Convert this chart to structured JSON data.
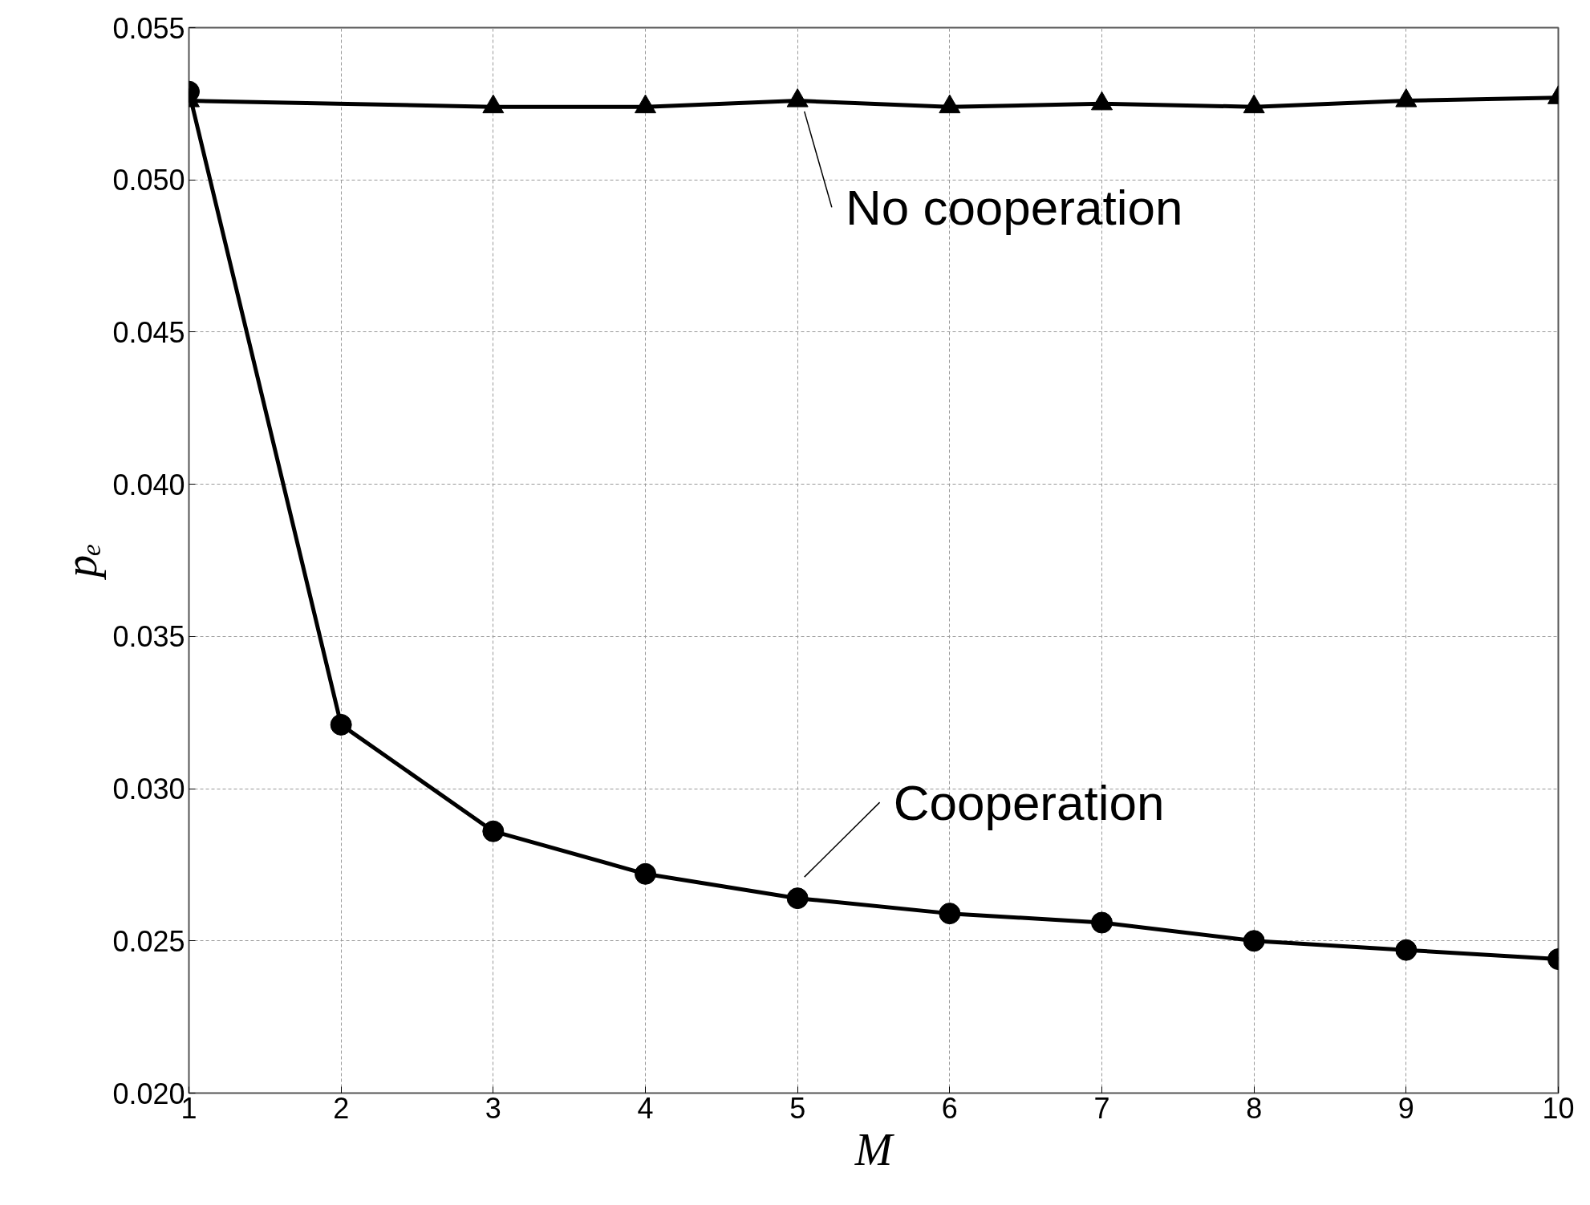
{
  "chart_data": {
    "type": "line",
    "xlabel": "M",
    "ylabel": "pₑ",
    "x": [
      1,
      2,
      3,
      4,
      5,
      6,
      7,
      8,
      9,
      10
    ],
    "series": [
      {
        "name": "No cooperation",
        "color": "#000000",
        "marker": "triangle",
        "x": [
          1,
          3,
          4,
          5,
          6,
          7,
          8,
          9,
          10
        ],
        "values": [
          0.0526,
          0.0524,
          0.0524,
          0.0526,
          0.0524,
          0.0525,
          0.0524,
          0.0526,
          0.0527
        ]
      },
      {
        "name": "Cooperation",
        "color": "#000000",
        "marker": "circle",
        "values": [
          0.0529,
          0.0321,
          0.0286,
          0.0272,
          0.0264,
          0.0259,
          0.0256,
          0.025,
          0.0247,
          0.0244
        ]
      }
    ],
    "xlim": [
      1,
      10
    ],
    "xticks": [
      1,
      2,
      3,
      4,
      5,
      6,
      7,
      8,
      9,
      10
    ],
    "ylim": [
      0.02,
      0.055
    ],
    "yticks": [
      {
        "value": 0.02,
        "label": "0.020"
      },
      {
        "value": 0.025,
        "label": "0.025"
      },
      {
        "value": 0.03,
        "label": "0.030"
      },
      {
        "value": 0.035,
        "label": "0.035"
      },
      {
        "value": 0.04,
        "label": "0.040"
      },
      {
        "value": 0.045,
        "label": "0.045"
      },
      {
        "value": 0.05,
        "label": "0.050"
      },
      {
        "value": 0.055,
        "label": "0.055"
      }
    ],
    "grid": true,
    "line_style": "solid"
  }
}
